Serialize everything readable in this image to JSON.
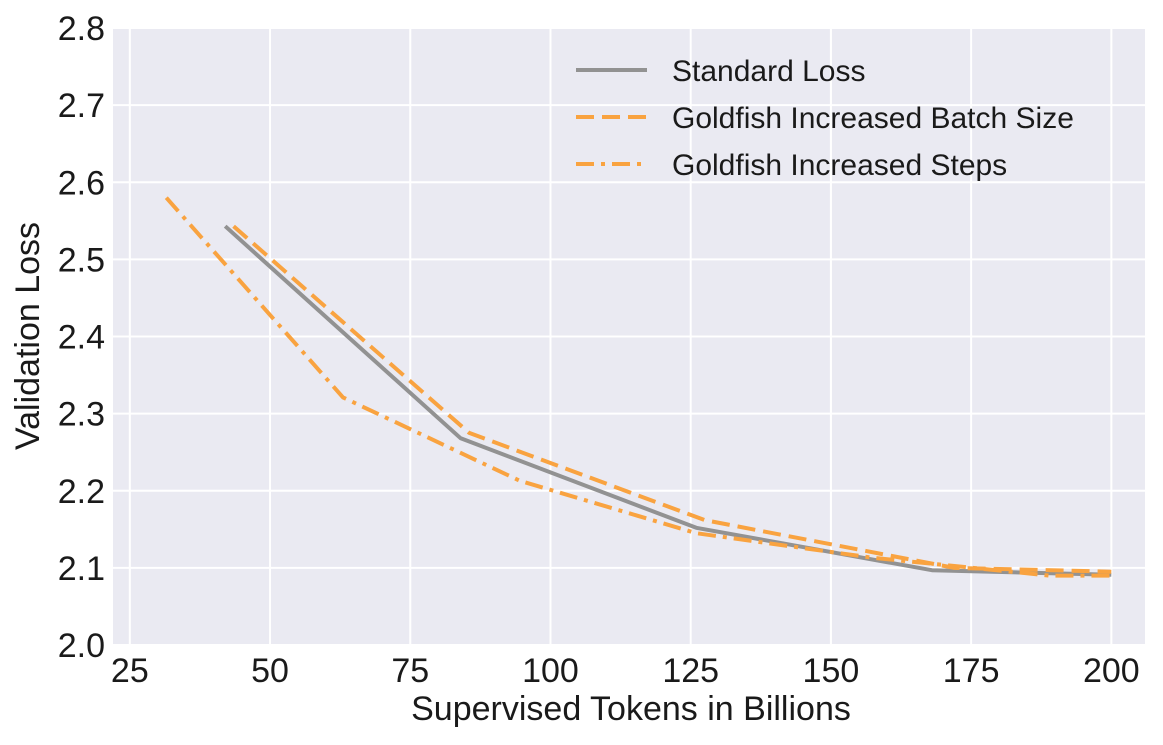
{
  "chart_data": {
    "type": "line",
    "title": "",
    "xlabel": "Supervised Tokens in Billions",
    "ylabel": "Validation Loss",
    "xlim": [
      22,
      206
    ],
    "ylim": [
      2.0,
      2.8
    ],
    "xticks": [
      25,
      50,
      75,
      100,
      125,
      150,
      175,
      200
    ],
    "yticks": [
      2.0,
      2.1,
      2.2,
      2.3,
      2.4,
      2.5,
      2.6,
      2.7,
      2.8
    ],
    "grid": true,
    "legend_position": "top-right",
    "series": [
      {
        "name": "Standard Loss",
        "color": "#929292",
        "linestyle": "solid",
        "x": [
          42,
          84,
          126,
          168,
          200
        ],
        "y": [
          2.543,
          2.268,
          2.152,
          2.097,
          2.091
        ]
      },
      {
        "name": "Goldfish Increased Batch Size",
        "color": "#f9a340",
        "linestyle": "dashed",
        "x": [
          43.5,
          85.5,
          127.5,
          172,
          200
        ],
        "y": [
          2.543,
          2.275,
          2.162,
          2.1,
          2.095
        ]
      },
      {
        "name": "Goldfish Increased Steps",
        "color": "#f9a340",
        "linestyle": "dashdot",
        "x": [
          31.5,
          63,
          94.5,
          126,
          157.5,
          189,
          200
        ],
        "y": [
          2.58,
          2.321,
          2.213,
          2.145,
          2.113,
          2.09,
          2.09
        ]
      }
    ]
  }
}
